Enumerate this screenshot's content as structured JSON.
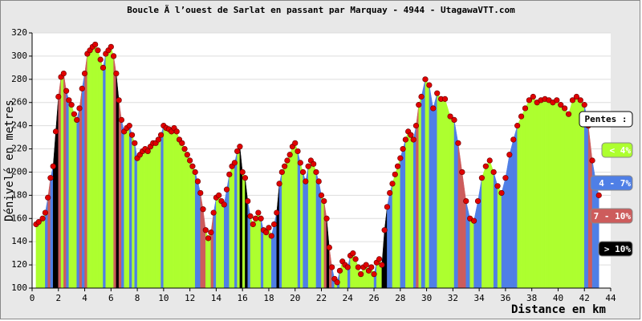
{
  "chart_data": {
    "type": "area",
    "title": "Boucle Ã  l’ouest de Sarlat en passant par Marquay - 4944 - UtagawaVTT.com",
    "xlabel": "Distance en km",
    "ylabel": "Dénivelé en metres",
    "x": [
      0.3,
      0.5,
      0.8,
      1.0,
      1.2,
      1.4,
      1.6,
      1.8,
      2.0,
      2.2,
      2.4,
      2.6,
      2.8,
      3.0,
      3.2,
      3.4,
      3.6,
      3.8,
      4.0,
      4.2,
      4.4,
      4.6,
      4.8,
      5.0,
      5.2,
      5.4,
      5.6,
      5.8,
      6.0,
      6.2,
      6.4,
      6.6,
      6.8,
      7.0,
      7.2,
      7.4,
      7.6,
      7.8,
      8.0,
      8.2,
      8.4,
      8.6,
      8.8,
      9.0,
      9.2,
      9.4,
      9.6,
      9.8,
      10.0,
      10.2,
      10.4,
      10.6,
      10.8,
      11.0,
      11.2,
      11.4,
      11.6,
      11.8,
      12.0,
      12.2,
      12.4,
      12.6,
      12.8,
      13.0,
      13.2,
      13.4,
      13.6,
      13.8,
      14.0,
      14.2,
      14.4,
      14.6,
      14.8,
      15.0,
      15.2,
      15.4,
      15.6,
      15.8,
      16.0,
      16.2,
      16.4,
      16.6,
      16.8,
      17.0,
      17.2,
      17.4,
      17.6,
      17.8,
      18.0,
      18.2,
      18.4,
      18.6,
      18.8,
      19.0,
      19.2,
      19.4,
      19.6,
      19.8,
      20.0,
      20.2,
      20.4,
      20.6,
      20.8,
      21.0,
      21.2,
      21.4,
      21.6,
      21.8,
      22.0,
      22.2,
      22.4,
      22.6,
      22.8,
      23.0,
      23.2,
      23.4,
      23.6,
      23.8,
      24.0,
      24.2,
      24.4,
      24.6,
      24.8,
      25.0,
      25.2,
      25.4,
      25.6,
      25.8,
      26.0,
      26.2,
      26.4,
      26.6,
      26.8,
      27.0,
      27.2,
      27.4,
      27.6,
      27.8,
      28.0,
      28.2,
      28.4,
      28.6,
      28.8,
      29.0,
      29.2,
      29.4,
      29.6,
      29.9,
      30.2,
      30.5,
      30.8,
      31.1,
      31.4,
      31.8,
      32.1,
      32.4,
      32.7,
      33.0,
      33.3,
      33.6,
      33.9,
      34.2,
      34.5,
      34.8,
      35.1,
      35.4,
      35.7,
      36.0,
      36.3,
      36.6,
      36.9,
      37.2,
      37.5,
      37.8,
      38.1,
      38.4,
      38.7,
      39.0,
      39.3,
      39.6,
      39.9,
      40.2,
      40.5,
      40.8,
      41.1,
      41.4,
      41.7,
      42.0,
      42.3,
      42.6,
      42.9,
      43.1
    ],
    "values": [
      155,
      157,
      160,
      165,
      178,
      195,
      205,
      235,
      265,
      282,
      285,
      270,
      262,
      258,
      250,
      245,
      255,
      272,
      285,
      302,
      305,
      308,
      310,
      305,
      297,
      290,
      302,
      305,
      308,
      300,
      285,
      262,
      245,
      235,
      238,
      240,
      232,
      225,
      212,
      215,
      218,
      220,
      218,
      222,
      225,
      225,
      228,
      232,
      240,
      238,
      237,
      235,
      238,
      235,
      228,
      225,
      220,
      215,
      210,
      205,
      200,
      192,
      182,
      168,
      150,
      143,
      148,
      165,
      178,
      180,
      175,
      172,
      185,
      198,
      205,
      208,
      218,
      222,
      200,
      195,
      175,
      162,
      155,
      160,
      165,
      160,
      150,
      148,
      152,
      145,
      155,
      165,
      190,
      200,
      205,
      210,
      215,
      222,
      225,
      218,
      208,
      200,
      192,
      205,
      210,
      207,
      200,
      192,
      180,
      175,
      160,
      135,
      118,
      108,
      105,
      115,
      123,
      120,
      118,
      128,
      130,
      125,
      118,
      112,
      118,
      120,
      115,
      118,
      112,
      122,
      125,
      120,
      150,
      170,
      182,
      190,
      198,
      205,
      212,
      220,
      228,
      235,
      232,
      228,
      240,
      258,
      265,
      280,
      275,
      255,
      268,
      263,
      263,
      248,
      245,
      225,
      200,
      175,
      160,
      158,
      175,
      195,
      205,
      210,
      200,
      188,
      182,
      195,
      215,
      228,
      240,
      248,
      255,
      262,
      265,
      260,
      262,
      263,
      262,
      260,
      262,
      258,
      255,
      250,
      262,
      265,
      262,
      258,
      240,
      210,
      190,
      180
    ],
    "xlim": [
      0,
      44
    ],
    "ylim": [
      100,
      320
    ],
    "xticks": [
      0,
      2,
      4,
      6,
      8,
      10,
      12,
      14,
      16,
      18,
      20,
      22,
      24,
      26,
      28,
      30,
      32,
      34,
      36,
      38,
      40,
      42,
      44
    ],
    "yticks": [
      100,
      120,
      140,
      160,
      180,
      200,
      220,
      240,
      260,
      280,
      300,
      320
    ],
    "grid": true,
    "marker_color": "#e00000",
    "legend": {
      "title": "Pentes :",
      "items": [
        {
          "label": "< 4%",
          "color": "#adff2f",
          "max": 4
        },
        {
          "label": "4 - 7%",
          "color": "#4f7fe6",
          "max": 7
        },
        {
          "label": "7 - 10%",
          "color": "#cd5c5c",
          "max": 10
        },
        {
          "label": "> 10%",
          "color": "#000000",
          "max": null
        }
      ]
    }
  }
}
